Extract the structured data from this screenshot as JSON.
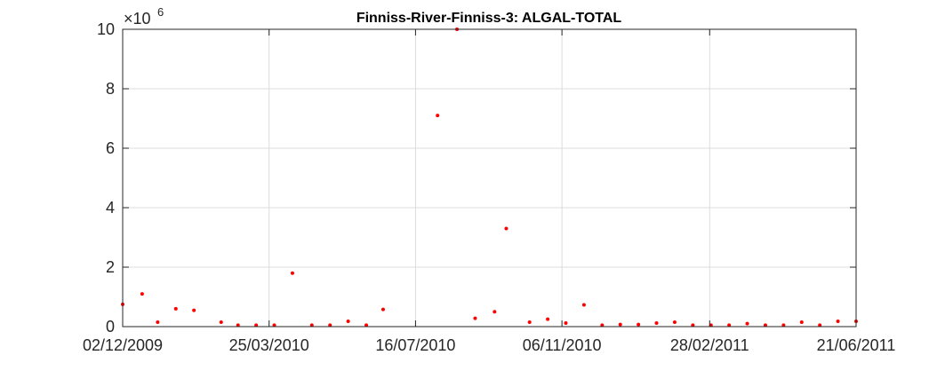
{
  "chart_data": {
    "type": "scatter",
    "title": "Finniss-River-Finniss-3: ALGAL-TOTAL",
    "xlabel": "",
    "ylabel": "",
    "y_multiplier_base": "×10",
    "y_multiplier_exponent": "6",
    "xlim": [
      "2009-12-02",
      "2011-06-21"
    ],
    "ylim": [
      0,
      10
    ],
    "y_unit_scale": 1000000,
    "x_ticks": [
      {
        "date": "2009-12-02",
        "label": "02/12/2009"
      },
      {
        "date": "2010-03-25",
        "label": "25/03/2010"
      },
      {
        "date": "2010-07-16",
        "label": "16/07/2010"
      },
      {
        "date": "2010-11-06",
        "label": "06/11/2010"
      },
      {
        "date": "2011-02-28",
        "label": "28/02/2011"
      },
      {
        "date": "2011-06-21",
        "label": "21/06/2011"
      }
    ],
    "y_ticks": [
      {
        "value": 0,
        "label": "0"
      },
      {
        "value": 2,
        "label": "2"
      },
      {
        "value": 4,
        "label": "4"
      },
      {
        "value": 6,
        "label": "6"
      },
      {
        "value": 8,
        "label": "8"
      },
      {
        "value": 10,
        "label": "10"
      }
    ],
    "grid": true,
    "marker_color": "#ff0000",
    "series": [
      {
        "color": "#ff0000",
        "points": [
          {
            "x": "2009-12-02",
            "y": 0.75
          },
          {
            "x": "2009-12-17",
            "y": 1.1
          },
          {
            "x": "2009-12-29",
            "y": 0.15
          },
          {
            "x": "2010-01-12",
            "y": 0.6
          },
          {
            "x": "2010-01-26",
            "y": 0.55
          },
          {
            "x": "2010-02-16",
            "y": 0.15
          },
          {
            "x": "2010-03-01",
            "y": 0.05
          },
          {
            "x": "2010-03-15",
            "y": 0.05
          },
          {
            "x": "2010-03-29",
            "y": 0.05
          },
          {
            "x": "2010-04-12",
            "y": 1.8
          },
          {
            "x": "2010-04-27",
            "y": 0.05
          },
          {
            "x": "2010-05-11",
            "y": 0.05
          },
          {
            "x": "2010-05-25",
            "y": 0.18
          },
          {
            "x": "2010-06-08",
            "y": 0.05
          },
          {
            "x": "2010-06-21",
            "y": 0.58
          },
          {
            "x": "2010-08-02",
            "y": 7.1
          },
          {
            "x": "2010-08-17",
            "y": 10.0
          },
          {
            "x": "2010-08-31",
            "y": 0.28
          },
          {
            "x": "2010-09-15",
            "y": 0.5
          },
          {
            "x": "2010-09-24",
            "y": 3.3
          },
          {
            "x": "2010-10-12",
            "y": 0.15
          },
          {
            "x": "2010-10-26",
            "y": 0.25
          },
          {
            "x": "2010-11-09",
            "y": 0.12
          },
          {
            "x": "2010-11-23",
            "y": 0.73
          },
          {
            "x": "2010-12-07",
            "y": 0.05
          },
          {
            "x": "2010-12-21",
            "y": 0.07
          },
          {
            "x": "2011-01-04",
            "y": 0.07
          },
          {
            "x": "2011-01-18",
            "y": 0.12
          },
          {
            "x": "2011-02-01",
            "y": 0.15
          },
          {
            "x": "2011-02-15",
            "y": 0.05
          },
          {
            "x": "2011-03-01",
            "y": 0.05
          },
          {
            "x": "2011-03-15",
            "y": 0.05
          },
          {
            "x": "2011-03-29",
            "y": 0.1
          },
          {
            "x": "2011-04-12",
            "y": 0.05
          },
          {
            "x": "2011-04-26",
            "y": 0.05
          },
          {
            "x": "2011-05-10",
            "y": 0.15
          },
          {
            "x": "2011-05-24",
            "y": 0.05
          },
          {
            "x": "2011-06-07",
            "y": 0.18
          },
          {
            "x": "2011-06-21",
            "y": 0.18
          }
        ]
      }
    ]
  }
}
